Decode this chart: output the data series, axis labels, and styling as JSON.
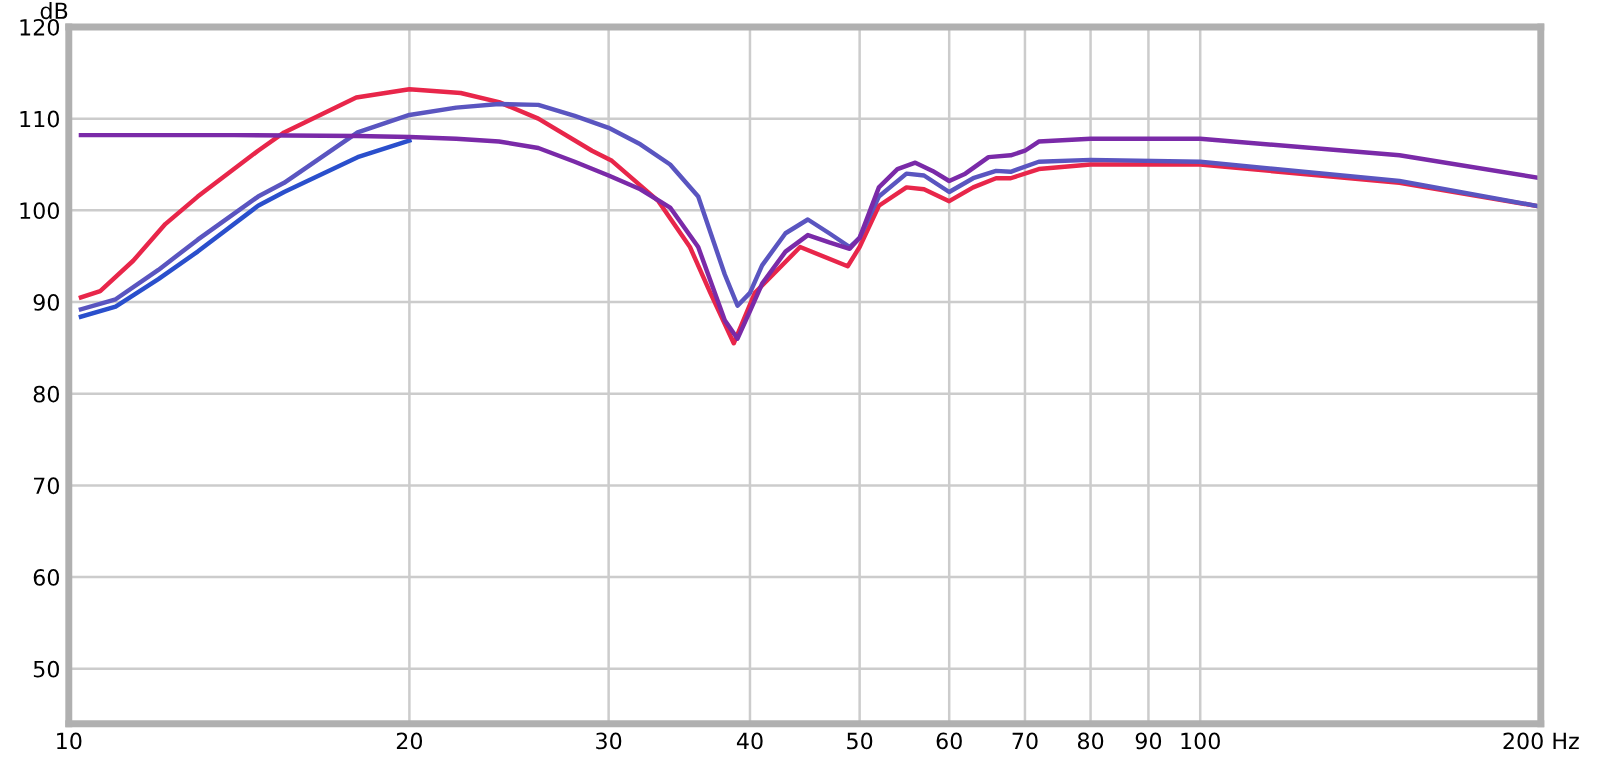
{
  "chart_data": {
    "type": "line",
    "ylabel": "dB",
    "log": "x",
    "grid": true,
    "line_style": "solid",
    "marker": "none",
    "xlim": [
      10,
      200
    ],
    "ylim": [
      44,
      120
    ],
    "xticks": [
      10,
      20,
      30,
      40,
      50,
      60,
      70,
      80,
      90,
      100,
      {
        "value": 200,
        "label": "200 Hz"
      }
    ],
    "yticks": [
      50,
      60,
      70,
      80,
      90,
      100,
      110,
      120
    ],
    "series": [
      {
        "color": "#e8264a",
        "x": [
          10.25,
          10.66,
          11.4,
          12.17,
          13,
          14.7,
          15.5,
          17.95,
          20,
          22.2,
          24,
          26,
          29,
          30.2,
          33.2,
          35.4,
          36.9,
          38.7,
          40.4,
          44.3,
          48.8,
          50,
          52,
          55,
          57,
          60,
          63,
          66,
          68,
          72,
          80,
          100,
          150,
          200
        ],
        "values": [
          90.5,
          91.2,
          94.5,
          98.5,
          101.5,
          106.5,
          108.5,
          112.3,
          113.2,
          112.8,
          111.8,
          110,
          106.5,
          105.4,
          101,
          96,
          91,
          85.5,
          91,
          96,
          93.9,
          96,
          100.5,
          102.5,
          102.3,
          101,
          102.5,
          103.5,
          103.5,
          104.5,
          105,
          105,
          103,
          100.4
        ]
      },
      {
        "color": "#2a4fcc",
        "x": [
          10.25,
          11,
          12,
          13,
          14.7,
          15.5,
          18,
          20
        ],
        "values": [
          88.4,
          89.5,
          92.5,
          95.5,
          100.5,
          102,
          105.8,
          107.6
        ]
      },
      {
        "color": "#5a55c0",
        "x": [
          10.25,
          11,
          12,
          13,
          14.7,
          15.5,
          18,
          20,
          22,
          24,
          26,
          28,
          30,
          32,
          34,
          36,
          38,
          39,
          40,
          41,
          43,
          45,
          47,
          49,
          50,
          52,
          55,
          57,
          60,
          63,
          66,
          68,
          72,
          80,
          100,
          150,
          200
        ],
        "values": [
          89.2,
          90.3,
          93.5,
          96.8,
          101.5,
          103,
          108.5,
          110.4,
          111.2,
          111.6,
          111.5,
          110.3,
          109,
          107.2,
          105,
          101.5,
          93,
          89.6,
          91,
          94,
          97.5,
          99,
          97.5,
          96,
          97,
          101.5,
          104,
          103.8,
          102,
          103.5,
          104.3,
          104.2,
          105.3,
          105.5,
          105.3,
          103.2,
          100.4
        ]
      },
      {
        "color": "#7a2aa8",
        "x": [
          10.25,
          14,
          18,
          20,
          22,
          24,
          26,
          28,
          30,
          32,
          34,
          36,
          38,
          39,
          40,
          41,
          43,
          45,
          47,
          49,
          50,
          52,
          54,
          56,
          58,
          60,
          62,
          65,
          68,
          70,
          72,
          80,
          100,
          150,
          200
        ],
        "values": [
          108.2,
          108.2,
          108.1,
          108,
          107.8,
          107.5,
          106.8,
          105.3,
          103.8,
          102.3,
          100.3,
          96,
          88,
          86,
          89,
          92,
          95.5,
          97.3,
          96.5,
          95.8,
          97,
          102.5,
          104.5,
          105.2,
          104.3,
          103.2,
          104,
          105.8,
          106,
          106.5,
          107.5,
          107.8,
          107.8,
          106,
          103.5
        ]
      }
    ]
  }
}
